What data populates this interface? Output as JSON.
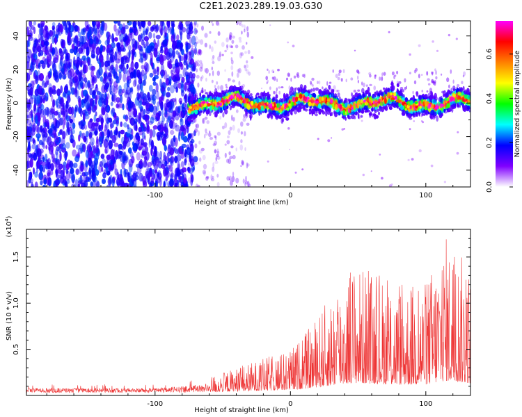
{
  "title": "C2E1.2023.289.19.03.G30",
  "chart_data": [
    {
      "type": "heatmap",
      "title": "",
      "xlabel": "Height of straight line (km)",
      "ylabel": "Frequency (Hz)",
      "xlim": [
        -195,
        133
      ],
      "ylim": [
        -50,
        49
      ],
      "x_ticks": [
        -100,
        0,
        100
      ],
      "x_tick_labels": [
        "-100",
        "0",
        "100"
      ],
      "y_ticks": [
        -40,
        -20,
        0,
        20,
        40
      ],
      "y_tick_labels": [
        "-40",
        "-20",
        "0",
        "20",
        "40"
      ],
      "colorbar": {
        "label": "Normalized spectral amplitude",
        "range": [
          0,
          0.75
        ],
        "ticks": [
          0,
          0.2,
          0.4,
          0.6
        ],
        "tick_labels": [
          "0.0",
          "0.2",
          "0.4",
          "0.6"
        ],
        "colors": [
          "#ffffff",
          "#8000ff",
          "#0000ff",
          "#00ffff",
          "#00ff00",
          "#ffff00",
          "#ff8000",
          "#ff0000",
          "#ff00ff"
        ]
      },
      "description_regions": [
        {
          "x_range": [
            -195,
            -75
          ],
          "freq_range": [
            -50,
            49
          ],
          "amplitude": "low-medium noise (purple speckle)"
        },
        {
          "x_range": [
            -75,
            -50
          ],
          "freq_range": [
            -50,
            49
          ],
          "amplitude": "fading faint noise"
        },
        {
          "x_range": [
            -75,
            133
          ],
          "freq_center": 0,
          "freq_halfwidth": 6,
          "amplitude": "signal band, peak ~0.7"
        }
      ]
    },
    {
      "type": "line",
      "title": "",
      "xlabel": "Height of straight line (km)",
      "ylabel": "SNR (10 * v/v)",
      "y_multiplier_label": "(x10",
      "y_multiplier_exp": "4",
      "y_multiplier_close": ")",
      "xlim": [
        -195,
        133
      ],
      "ylim": [
        0,
        1.8
      ],
      "x_ticks": [
        -100,
        0,
        100
      ],
      "x_tick_labels": [
        "-100",
        "0",
        "100"
      ],
      "y_ticks": [
        0.5,
        1.0,
        1.5
      ],
      "y_tick_labels": [
        "0.5",
        "1.0",
        "1.5"
      ],
      "series": [
        {
          "color": "#ee3333",
          "envelope": [
            {
              "x": -195,
              "y": 0.12
            },
            {
              "x": -150,
              "y": 0.12
            },
            {
              "x": -100,
              "y": 0.12
            },
            {
              "x": -75,
              "y": 0.16
            },
            {
              "x": -50,
              "y": 0.25
            },
            {
              "x": -25,
              "y": 0.38
            },
            {
              "x": 0,
              "y": 0.5
            },
            {
              "x": 15,
              "y": 0.75
            },
            {
              "x": 30,
              "y": 1.1
            },
            {
              "x": 45,
              "y": 1.45
            },
            {
              "x": 60,
              "y": 1.35
            },
            {
              "x": 80,
              "y": 1.2
            },
            {
              "x": 100,
              "y": 1.25
            },
            {
              "x": 115,
              "y": 1.75
            },
            {
              "x": 133,
              "y": 1.4
            }
          ]
        }
      ]
    }
  ]
}
